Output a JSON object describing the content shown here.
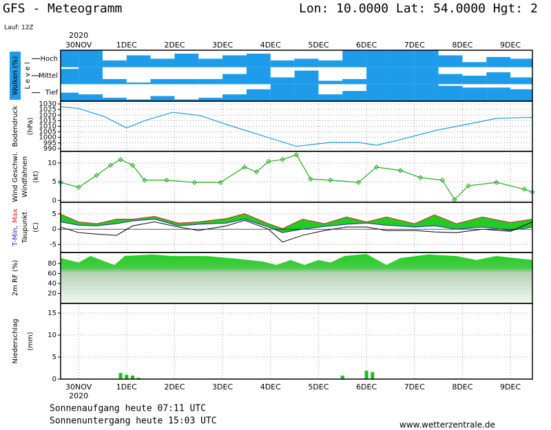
{
  "header": {
    "title": "GFS - Meteogramm",
    "location": "Lon: 10.0000 Lat: 54.0000 Hgt: 2",
    "run": "Lauf: 12Z"
  },
  "time_axis": {
    "xlim": [
      -9,
      227
    ],
    "xticks": [
      {
        "value": 0,
        "label": "30NOV"
      },
      {
        "value": 24,
        "label": "1DEC"
      },
      {
        "value": 48,
        "label": "2DEC"
      },
      {
        "value": 72,
        "label": "3DEC"
      },
      {
        "value": 96,
        "label": "4DEC"
      },
      {
        "value": 120,
        "label": "5DEC"
      },
      {
        "value": 144,
        "label": "6DEC"
      },
      {
        "value": 168,
        "label": "7DEC"
      },
      {
        "value": 192,
        "label": "8DEC"
      },
      {
        "value": 216,
        "label": "9DEC"
      }
    ],
    "year": "2020"
  },
  "chart_data": [
    {
      "type": "heatmap",
      "ylabel": "Wolken (%)",
      "level_label": "L e v e l",
      "color": "#1e9be9",
      "x": [
        -6,
        6,
        18,
        30,
        42,
        54,
        66,
        78,
        90,
        102,
        114,
        126,
        138,
        150,
        162,
        174,
        186,
        198,
        210,
        222
      ],
      "ylim": [
        0,
        100
      ],
      "series": [
        {
          "name": "Hoch",
          "values": [
            100,
            100,
            40,
            70,
            50,
            80,
            50,
            70,
            80,
            40,
            50,
            40,
            100,
            100,
            100,
            100,
            70,
            30,
            60,
            50
          ]
        },
        {
          "name": "Mittel",
          "values": [
            90,
            100,
            30,
            10,
            30,
            30,
            30,
            60,
            100,
            40,
            80,
            20,
            30,
            100,
            100,
            100,
            60,
            50,
            70,
            40
          ]
        },
        {
          "name": "Tief",
          "values": [
            50,
            40,
            20,
            10,
            30,
            10,
            20,
            40,
            70,
            100,
            100,
            40,
            60,
            100,
            100,
            100,
            90,
            80,
            80,
            70
          ]
        }
      ]
    },
    {
      "type": "line",
      "ylabel": "Bodendruck",
      "unit": "(hPa)",
      "color": "#1e9be9",
      "x": [
        -9,
        0,
        13,
        24,
        33,
        47,
        61,
        75,
        92,
        109,
        126,
        140,
        149,
        161,
        178,
        195,
        209,
        227
      ],
      "series": [
        {
          "name": "Bodendruck",
          "values": [
            1027.5,
            1026,
            1018.5,
            1008.5,
            1015,
            1022.5,
            1019.5,
            1011,
            1001.5,
            992,
            995.5,
            995.5,
            993,
            998,
            1006,
            1012,
            1017,
            1018
          ]
        }
      ],
      "ylim": [
        987.5,
        1032.5
      ],
      "yticks": [
        990,
        995,
        1000,
        1005,
        1010,
        1015,
        1020,
        1025,
        1030
      ],
      "grid": true
    },
    {
      "type": "line",
      "ylabel": "Wind Geschwi.",
      "ylabel_color": "#22aa22",
      "ylabel2": "Windfahnen",
      "unit": "(kt)",
      "color": "#22aa22",
      "markers": true,
      "x": [
        -9,
        0,
        9,
        16,
        21,
        27,
        33,
        44,
        58,
        71,
        83,
        89,
        95,
        102,
        109,
        116,
        126,
        140,
        149,
        161,
        171,
        182,
        188,
        195,
        209,
        223,
        227
      ],
      "series": [
        {
          "name": "Wind Geschwi.",
          "values": [
            4.8,
            3.5,
            6.7,
            9.4,
            10.9,
            9.4,
            5.4,
            5.4,
            4.8,
            4.8,
            8.9,
            7.6,
            10.4,
            10.9,
            12.2,
            5.7,
            5.4,
            4.8,
            8.9,
            8,
            6.1,
            5.4,
            0.2,
            3.9,
            4.8,
            3,
            2.2
          ]
        }
      ],
      "ylim": [
        -0.5,
        13.1
      ],
      "yticks": [
        0,
        5,
        10
      ],
      "grid": true
    },
    {
      "type": "band",
      "ylabel_parts": [
        {
          "text": "T-Min,",
          "color": "#2222cc"
        },
        {
          "text": "Max",
          "color": "#dd2222"
        }
      ],
      "ylabel2": "Taupunkt",
      "unit": "(C)",
      "fill": "#22cc22",
      "x": [
        -9,
        0,
        9,
        19,
        27,
        38,
        50,
        60,
        74,
        83,
        95,
        102,
        112,
        123,
        134,
        144,
        154,
        168,
        178,
        189,
        202,
        216,
        227
      ],
      "series": [
        {
          "name": "Max",
          "color": "#dd2222",
          "values": [
            4.9,
            2.4,
            1.8,
            3.3,
            3.3,
            4.2,
            2,
            2.4,
            3.5,
            5.1,
            1.8,
            0.2,
            3.3,
            1.8,
            4,
            2.4,
            4,
            1.8,
            4.7,
            1.8,
            4,
            2.2,
            3.3
          ]
        },
        {
          "name": "T-Min",
          "color": "#2222cc",
          "values": [
            2.4,
            1.3,
            1.1,
            1.8,
            2.7,
            3.3,
            1.1,
            1.6,
            2,
            3.3,
            0.7,
            -1.1,
            0,
            0.9,
            1.6,
            2,
            1.3,
            0.7,
            1.1,
            0,
            0.7,
            -0.4,
            0.7
          ]
        },
        {
          "name": "Taupunkt",
          "color": "#000000",
          "values": [
            0.7,
            -1.1,
            -1.6,
            -2,
            1.1,
            2.4,
            0.7,
            -0.4,
            1.1,
            2.9,
            0,
            -4.2,
            -2,
            -0.4,
            0.7,
            0.7,
            -0.4,
            -0.4,
            -0.9,
            -1.1,
            0,
            -0.7,
            2.4
          ]
        }
      ],
      "ylim": [
        -7.6,
        8.8
      ],
      "yticks": [
        -5,
        0,
        5
      ],
      "grid": true
    },
    {
      "type": "area",
      "ylabel": "2m RF (%)",
      "ylabel_color": "#22aa22",
      "color": "#22cc22",
      "x": [
        -9,
        0,
        6,
        13,
        18,
        23,
        37,
        47,
        64,
        78,
        92,
        99,
        106,
        113,
        120,
        126,
        133,
        144,
        154,
        161,
        175,
        189,
        199,
        209,
        227
      ],
      "series": [
        {
          "name": "2m RF",
          "values": [
            91,
            82,
            95,
            84,
            77,
            95,
            98,
            95,
            95,
            90,
            84,
            77,
            87,
            77,
            87,
            82,
            95,
            99,
            77,
            91,
            98,
            95,
            87,
            95,
            87
          ]
        }
      ],
      "ylim": [
        0,
        102
      ],
      "yticks": [
        20,
        40,
        60,
        80
      ],
      "grid": true
    },
    {
      "type": "bar",
      "ylabel": "Niederschlag",
      "unit": "(mm)",
      "color": "#22bb22",
      "x": [
        21,
        24,
        27,
        30,
        132,
        144,
        147
      ],
      "series": [
        {
          "name": "Niederschlag",
          "values": [
            1.4,
            1,
            0.8,
            0.3,
            0.8,
            1.9,
            1.6
          ]
        }
      ],
      "ylim": [
        0,
        17.2
      ],
      "yticks": [
        0,
        5,
        10,
        15
      ],
      "grid": true
    }
  ],
  "footer": {
    "sunrise": "Sonnenaufgang heute 07:11 UTC",
    "sunset": "Sonnenuntergang heute 15:03 UTC",
    "site": "www.wetterzentrale.de"
  }
}
